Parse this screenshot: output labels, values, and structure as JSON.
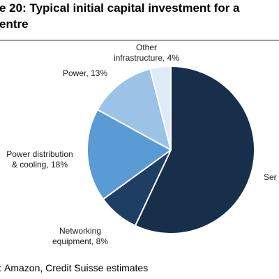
{
  "header": {
    "title_line1": "e 20: Typical initial capital investment for a",
    "title_line2": "entre"
  },
  "footer": {
    "source": ": Amazon, Credit Suisse estimates"
  },
  "chart_data": {
    "type": "pie",
    "title": "e 20: Typical initial capital investment for a entre",
    "slices": [
      {
        "label": [
          "Ser"
        ],
        "value": 57,
        "color": "#172f4a"
      },
      {
        "label": [
          "Networking",
          "equipment, 8%"
        ],
        "value": 8,
        "color": "#1f3e63"
      },
      {
        "label": [
          "Power distribution",
          "& cooling, 18%"
        ],
        "value": 18,
        "color": "#5a9bd5"
      },
      {
        "label": [
          "Power, 13%"
        ],
        "value": 13,
        "color": "#9cc2e5"
      },
      {
        "label": [
          "Other",
          "infrastructure, 4%"
        ],
        "value": 4,
        "color": "#ddebf7"
      }
    ]
  }
}
